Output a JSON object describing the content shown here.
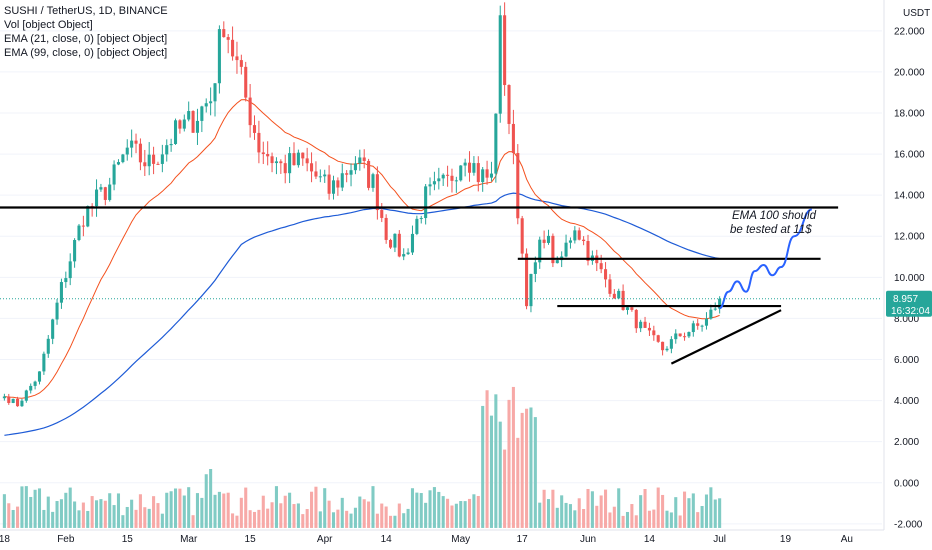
{
  "legend": {
    "title": "SUSHI / TetherUS, 1D, BINANCE",
    "lines": [
      "Vol [object Object]",
      "EMA (21, close, 0) [object Object]",
      "EMA (99, close, 0) [object Object]"
    ]
  },
  "currency": "USDT",
  "price_badge": {
    "price": "8.957",
    "countdown": "16:32:04"
  },
  "annotation": [
    "EMA 100 should",
    "be tested at 11$"
  ],
  "colors": {
    "up": "#26a69a",
    "down": "#ef5350",
    "up_vol": "#80cbc4",
    "down_vol": "#f7a9a7",
    "ema21": "#f4511e",
    "ema99": "#1e5bd6",
    "projection": "#2962ff",
    "badge": "#26a69a"
  },
  "chart_data": {
    "type": "candlestick",
    "y_ticks": [
      "22.000",
      "20.000",
      "18.000",
      "16.000",
      "14.000",
      "12.000",
      "10.000",
      "8.000",
      "6.000",
      "4.000",
      "2.000",
      "0.000",
      "-2.000"
    ],
    "y_tick_values": [
      22,
      20,
      18,
      16,
      14,
      12,
      10,
      8,
      6,
      4,
      2,
      0,
      -2
    ],
    "x_ticks": [
      "18",
      "Feb",
      "15",
      "Mar",
      "15",
      "Apr",
      "14",
      "May",
      "17",
      "Jun",
      "14",
      "Jul",
      "19",
      "Au"
    ],
    "x_tick_days": [
      0,
      14,
      28,
      42,
      56,
      73,
      87,
      104,
      118,
      133,
      147,
      163,
      178,
      192
    ],
    "ylim": [
      -2.3,
      23.5
    ],
    "xlim": [
      -1,
      200
    ],
    "anchors": [
      [
        0,
        4.2
      ],
      [
        3,
        3.8
      ],
      [
        8,
        5.3
      ],
      [
        13,
        9.5
      ],
      [
        18,
        13.0
      ],
      [
        24,
        14.5
      ],
      [
        28,
        16.2
      ],
      [
        33,
        15.5
      ],
      [
        38,
        16.8
      ],
      [
        42,
        17.5
      ],
      [
        47,
        18.7
      ],
      [
        50,
        22.6
      ],
      [
        54,
        19.5
      ],
      [
        58,
        16.4
      ],
      [
        63,
        15.4
      ],
      [
        68,
        15.6
      ],
      [
        74,
        14.2
      ],
      [
        80,
        15.7
      ],
      [
        84,
        14.6
      ],
      [
        87,
        12.2
      ],
      [
        91,
        11.0
      ],
      [
        96,
        13.9
      ],
      [
        101,
        14.6
      ],
      [
        105,
        16.2
      ],
      [
        108,
        15.0
      ],
      [
        111,
        14.8
      ],
      [
        113,
        22.0
      ],
      [
        116,
        15.5
      ],
      [
        119,
        9.0
      ],
      [
        123,
        12.2
      ],
      [
        126,
        10.4
      ],
      [
        130,
        12.6
      ],
      [
        134,
        10.8
      ],
      [
        138,
        9.6
      ],
      [
        142,
        8.4
      ],
      [
        146,
        7.3
      ],
      [
        150,
        6.5
      ],
      [
        154,
        7.2
      ],
      [
        158,
        7.6
      ],
      [
        160,
        7.9
      ],
      [
        163,
        8.957
      ]
    ],
    "horizontal_lines": [
      {
        "price": 13.4,
        "x_from": -1,
        "x_to": 190
      },
      {
        "price": 10.9,
        "x_from": 117,
        "x_to": 186
      },
      {
        "price": 8.6,
        "x_from": 126,
        "x_to": 177
      }
    ],
    "trend_line": {
      "from": [
        152,
        5.8
      ],
      "to": [
        177,
        8.4
      ]
    },
    "projection": [
      [
        163,
        8.5
      ],
      [
        165,
        9.3
      ],
      [
        167,
        9.8
      ],
      [
        169,
        9.3
      ],
      [
        171,
        10.3
      ],
      [
        173,
        10.6
      ],
      [
        175,
        10.1
      ],
      [
        177,
        10.5
      ],
      [
        180,
        12.0
      ],
      [
        184,
        13.3
      ]
    ],
    "current_price": 8.957
  }
}
